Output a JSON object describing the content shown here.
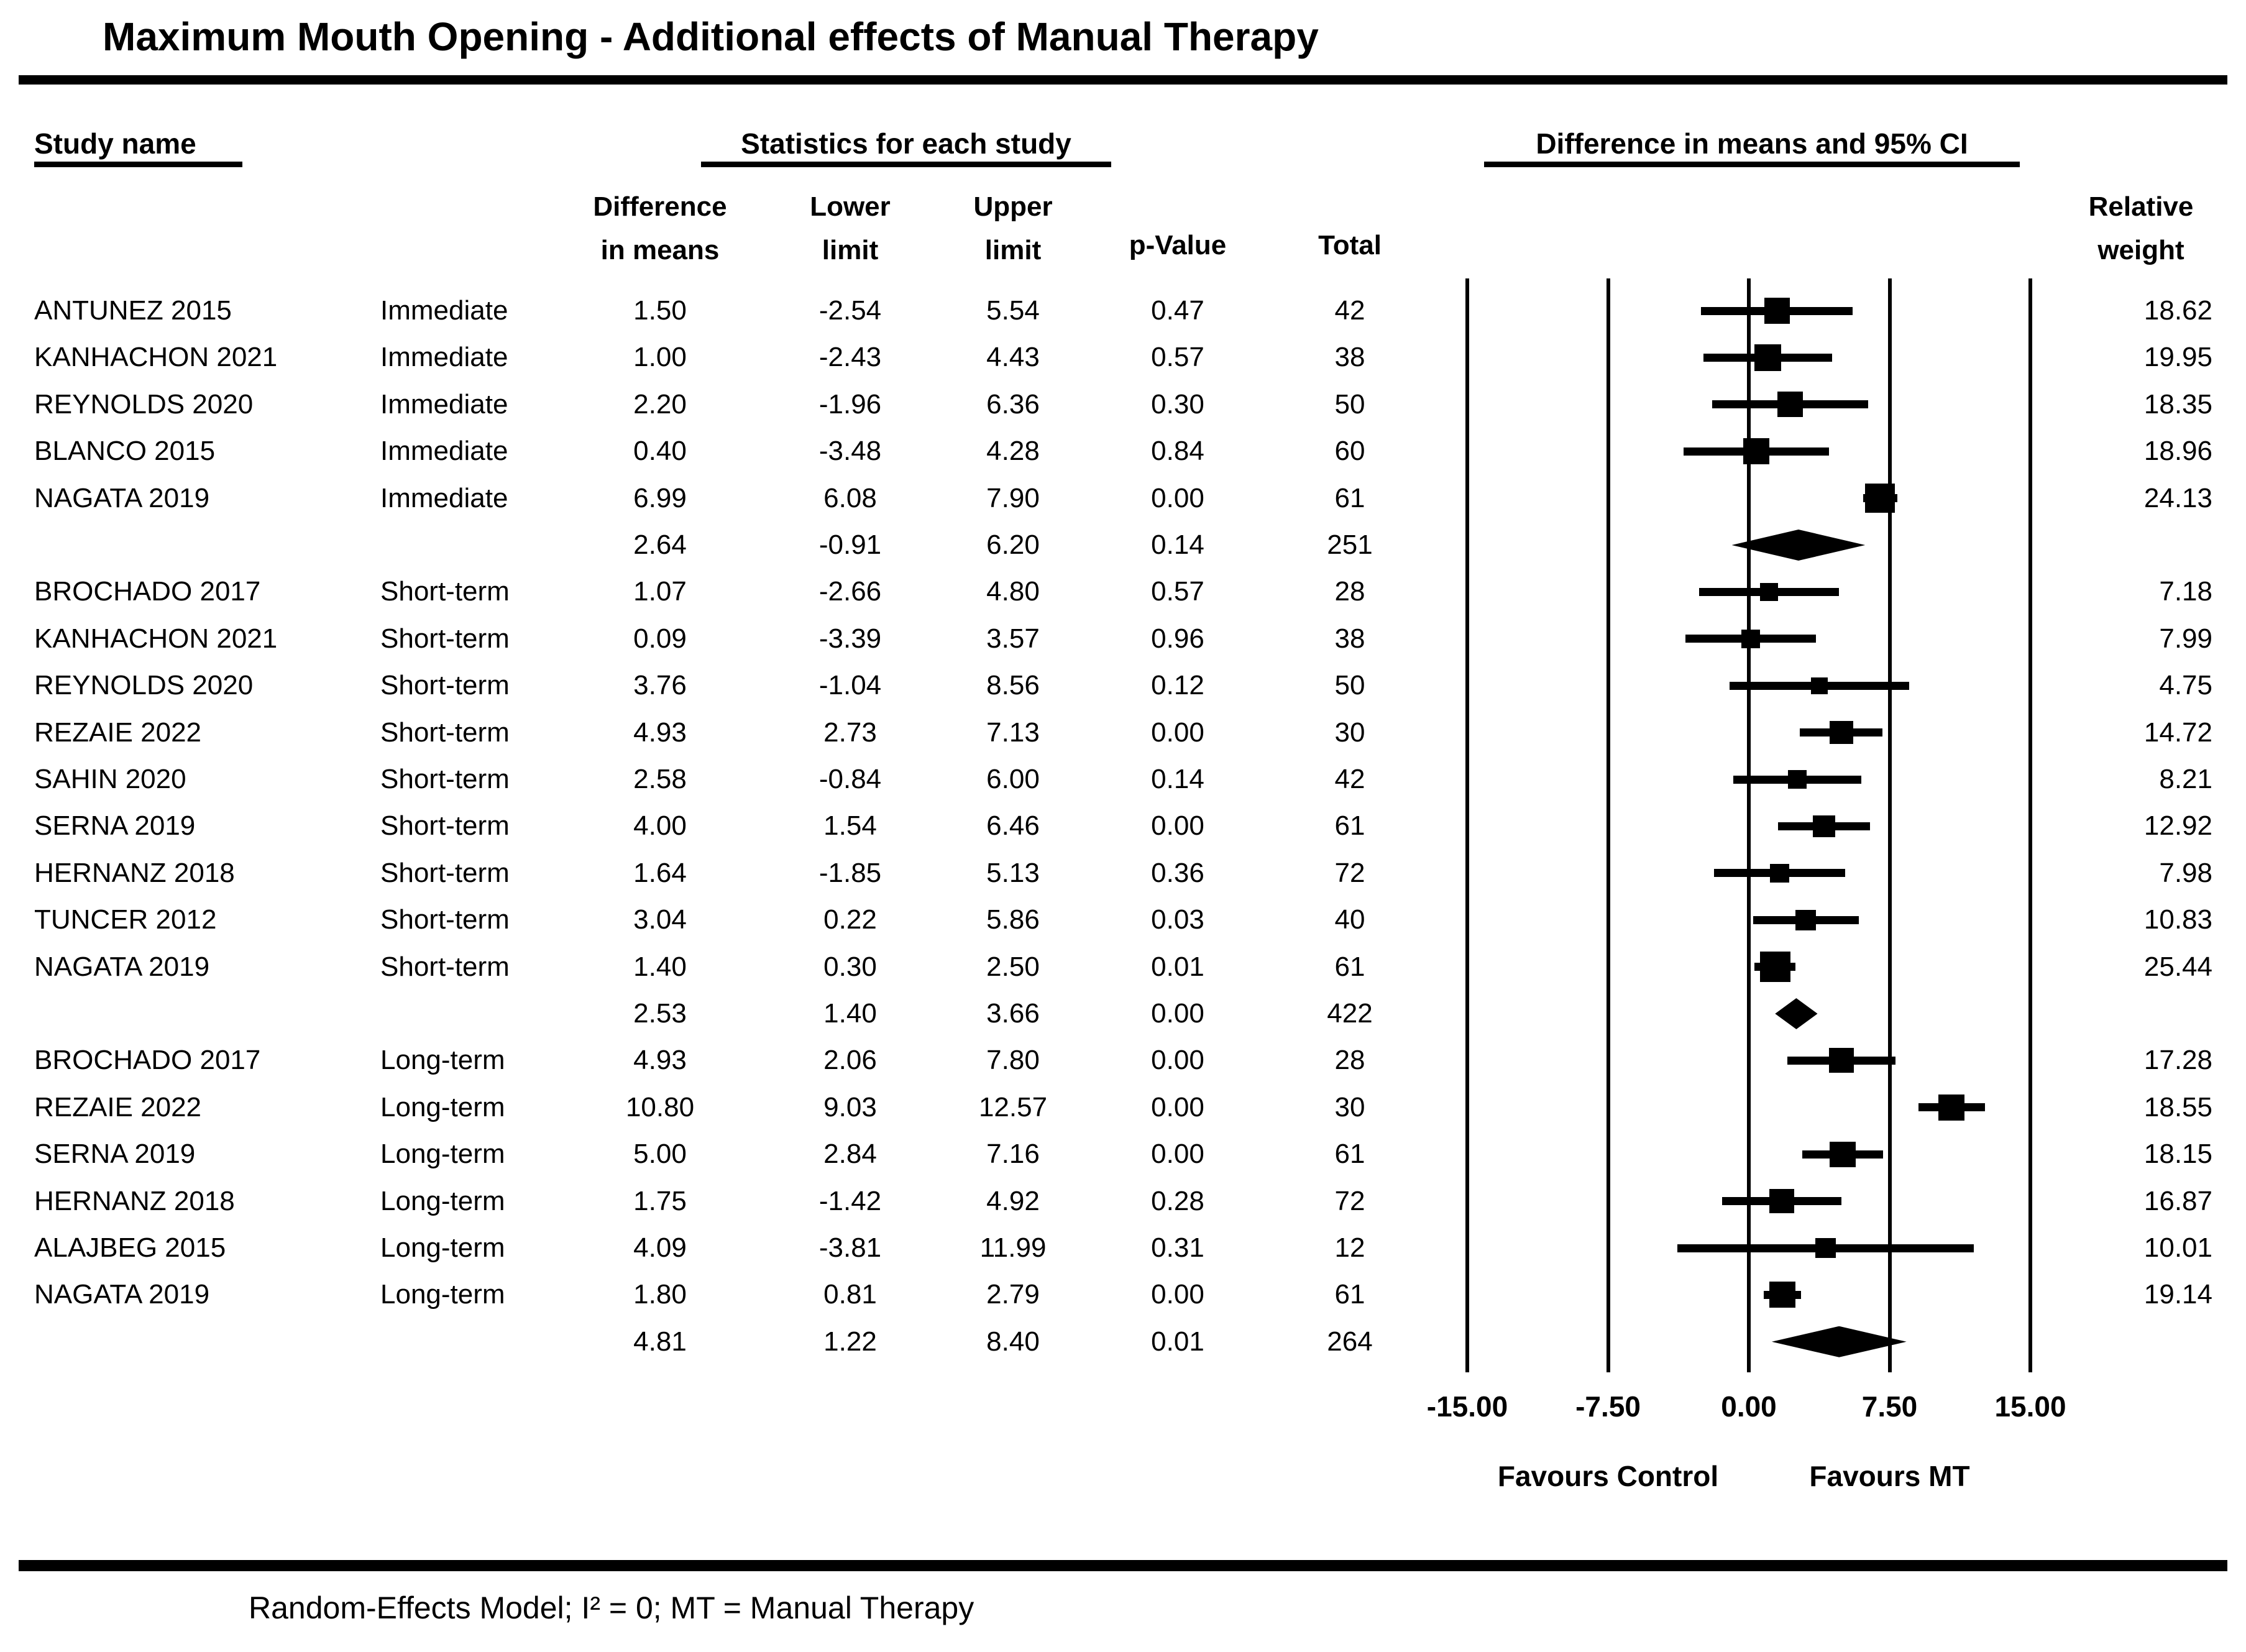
{
  "title": "Maximum Mouth Opening - Additional effects of Manual Therapy",
  "footer": "Random-Effects Model; I² = 0; MT = Manual Therapy",
  "header": {
    "study_name": "Study name",
    "stats_group": "Statistics for each study",
    "plot_group": "Difference in means and 95% CI",
    "col_diff": "Difference\nin means",
    "col_lower": "Lower\nlimit",
    "col_upper": "Upper\nlimit",
    "col_pvalue": "p-Value",
    "col_total": "Total",
    "col_weight": "Relative\nweight"
  },
  "axis": {
    "ticks": [
      {
        "label": "-15.00",
        "value": -15
      },
      {
        "label": "-7.50",
        "value": -7.5
      },
      {
        "label": "0.00",
        "value": 0
      },
      {
        "label": "7.50",
        "value": 7.5
      },
      {
        "label": "15.00",
        "value": 15
      }
    ],
    "favours_left": "Favours Control",
    "favours_right": "Favours MT"
  },
  "chart_data": {
    "type": "forest",
    "xlim": [
      -15,
      15
    ],
    "xlabel_left": "Favours Control",
    "xlabel_right": "Favours MT",
    "marker_color": "#000000",
    "rows": [
      {
        "kind": "study",
        "study": "ANTUNEZ 2015",
        "time": "Immediate",
        "diff": "1.50",
        "lower": "-2.54",
        "upper": "5.54",
        "p": "0.47",
        "total": "42",
        "weight": "18.62"
      },
      {
        "kind": "study",
        "study": "KANHACHON 2021",
        "time": "Immediate",
        "diff": "1.00",
        "lower": "-2.43",
        "upper": "4.43",
        "p": "0.57",
        "total": "38",
        "weight": "19.95"
      },
      {
        "kind": "study",
        "study": "REYNOLDS 2020",
        "time": "Immediate",
        "diff": "2.20",
        "lower": "-1.96",
        "upper": "6.36",
        "p": "0.30",
        "total": "50",
        "weight": "18.35"
      },
      {
        "kind": "study",
        "study": "BLANCO 2015",
        "time": "Immediate",
        "diff": "0.40",
        "lower": "-3.48",
        "upper": "4.28",
        "p": "0.84",
        "total": "60",
        "weight": "18.96"
      },
      {
        "kind": "study",
        "study": "NAGATA 2019",
        "time": "Immediate",
        "diff": "6.99",
        "lower": "6.08",
        "upper": "7.90",
        "p": "0.00",
        "total": "61",
        "weight": "24.13"
      },
      {
        "kind": "summary",
        "study": "",
        "time": "",
        "diff": "2.64",
        "lower": "-0.91",
        "upper": "6.20",
        "p": "0.14",
        "total": "251",
        "weight": ""
      },
      {
        "kind": "study",
        "study": "BROCHADO 2017",
        "time": "Short-term",
        "diff": "1.07",
        "lower": "-2.66",
        "upper": "4.80",
        "p": "0.57",
        "total": "28",
        "weight": "7.18"
      },
      {
        "kind": "study",
        "study": "KANHACHON 2021",
        "time": "Short-term",
        "diff": "0.09",
        "lower": "-3.39",
        "upper": "3.57",
        "p": "0.96",
        "total": "38",
        "weight": "7.99"
      },
      {
        "kind": "study",
        "study": "REYNOLDS 2020",
        "time": "Short-term",
        "diff": "3.76",
        "lower": "-1.04",
        "upper": "8.56",
        "p": "0.12",
        "total": "50",
        "weight": "4.75"
      },
      {
        "kind": "study",
        "study": "REZAIE 2022",
        "time": "Short-term",
        "diff": "4.93",
        "lower": "2.73",
        "upper": "7.13",
        "p": "0.00",
        "total": "30",
        "weight": "14.72"
      },
      {
        "kind": "study",
        "study": "SAHIN 2020",
        "time": "Short-term",
        "diff": "2.58",
        "lower": "-0.84",
        "upper": "6.00",
        "p": "0.14",
        "total": "42",
        "weight": "8.21"
      },
      {
        "kind": "study",
        "study": "SERNA 2019",
        "time": "Short-term",
        "diff": "4.00",
        "lower": "1.54",
        "upper": "6.46",
        "p": "0.00",
        "total": "61",
        "weight": "12.92"
      },
      {
        "kind": "study",
        "study": "HERNANZ 2018",
        "time": "Short-term",
        "diff": "1.64",
        "lower": "-1.85",
        "upper": "5.13",
        "p": "0.36",
        "total": "72",
        "weight": "7.98"
      },
      {
        "kind": "study",
        "study": "TUNCER 2012",
        "time": "Short-term",
        "diff": "3.04",
        "lower": "0.22",
        "upper": "5.86",
        "p": "0.03",
        "total": "40",
        "weight": "10.83"
      },
      {
        "kind": "study",
        "study": "NAGATA 2019",
        "time": "Short-term",
        "diff": "1.40",
        "lower": "0.30",
        "upper": "2.50",
        "p": "0.01",
        "total": "61",
        "weight": "25.44"
      },
      {
        "kind": "summary",
        "study": "",
        "time": "",
        "diff": "2.53",
        "lower": "1.40",
        "upper": "3.66",
        "p": "0.00",
        "total": "422",
        "weight": ""
      },
      {
        "kind": "study",
        "study": "BROCHADO 2017",
        "time": "Long-term",
        "diff": "4.93",
        "lower": "2.06",
        "upper": "7.80",
        "p": "0.00",
        "total": "28",
        "weight": "17.28"
      },
      {
        "kind": "study",
        "study": "REZAIE 2022",
        "time": "Long-term",
        "diff": "10.80",
        "lower": "9.03",
        "upper": "12.57",
        "p": "0.00",
        "total": "30",
        "weight": "18.55"
      },
      {
        "kind": "study",
        "study": "SERNA 2019",
        "time": "Long-term",
        "diff": "5.00",
        "lower": "2.84",
        "upper": "7.16",
        "p": "0.00",
        "total": "61",
        "weight": "18.15"
      },
      {
        "kind": "study",
        "study": "HERNANZ 2018",
        "time": "Long-term",
        "diff": "1.75",
        "lower": "-1.42",
        "upper": "4.92",
        "p": "0.28",
        "total": "72",
        "weight": "16.87"
      },
      {
        "kind": "study",
        "study": "ALAJBEG 2015",
        "time": "Long-term",
        "diff": "4.09",
        "lower": "-3.81",
        "upper": "11.99",
        "p": "0.31",
        "total": "12",
        "weight": "10.01"
      },
      {
        "kind": "study",
        "study": "NAGATA 2019",
        "time": "Long-term",
        "diff": "1.80",
        "lower": "0.81",
        "upper": "2.79",
        "p": "0.00",
        "total": "61",
        "weight": "19.14"
      },
      {
        "kind": "summary",
        "study": "",
        "time": "",
        "diff": "4.81",
        "lower": "1.22",
        "upper": "8.40",
        "p": "0.01",
        "total": "264",
        "weight": ""
      }
    ]
  }
}
